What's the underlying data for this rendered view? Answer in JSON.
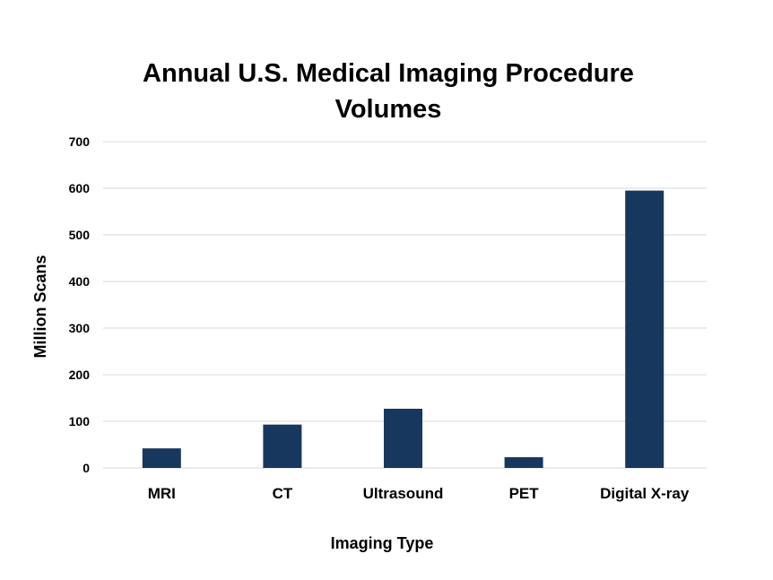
{
  "chart_data": {
    "type": "bar",
    "title": "Annual U.S. Medical Imaging Procedure Volumes",
    "title_lines": [
      "Annual U.S. Medical Imaging Procedure",
      "Volumes"
    ],
    "xlabel": "Imaging Type",
    "ylabel": "Million Scans",
    "categories": [
      "MRI",
      "CT",
      "Ultrasound",
      "PET",
      "Digital X-ray"
    ],
    "values": [
      42,
      93,
      127,
      23,
      595
    ],
    "ylim": [
      0,
      700
    ],
    "yticks": [
      0,
      100,
      200,
      300,
      400,
      500,
      600,
      700
    ],
    "grid": true,
    "legend": "none",
    "bar_color": "#17375e",
    "grid_color": "#d9d9d9"
  }
}
